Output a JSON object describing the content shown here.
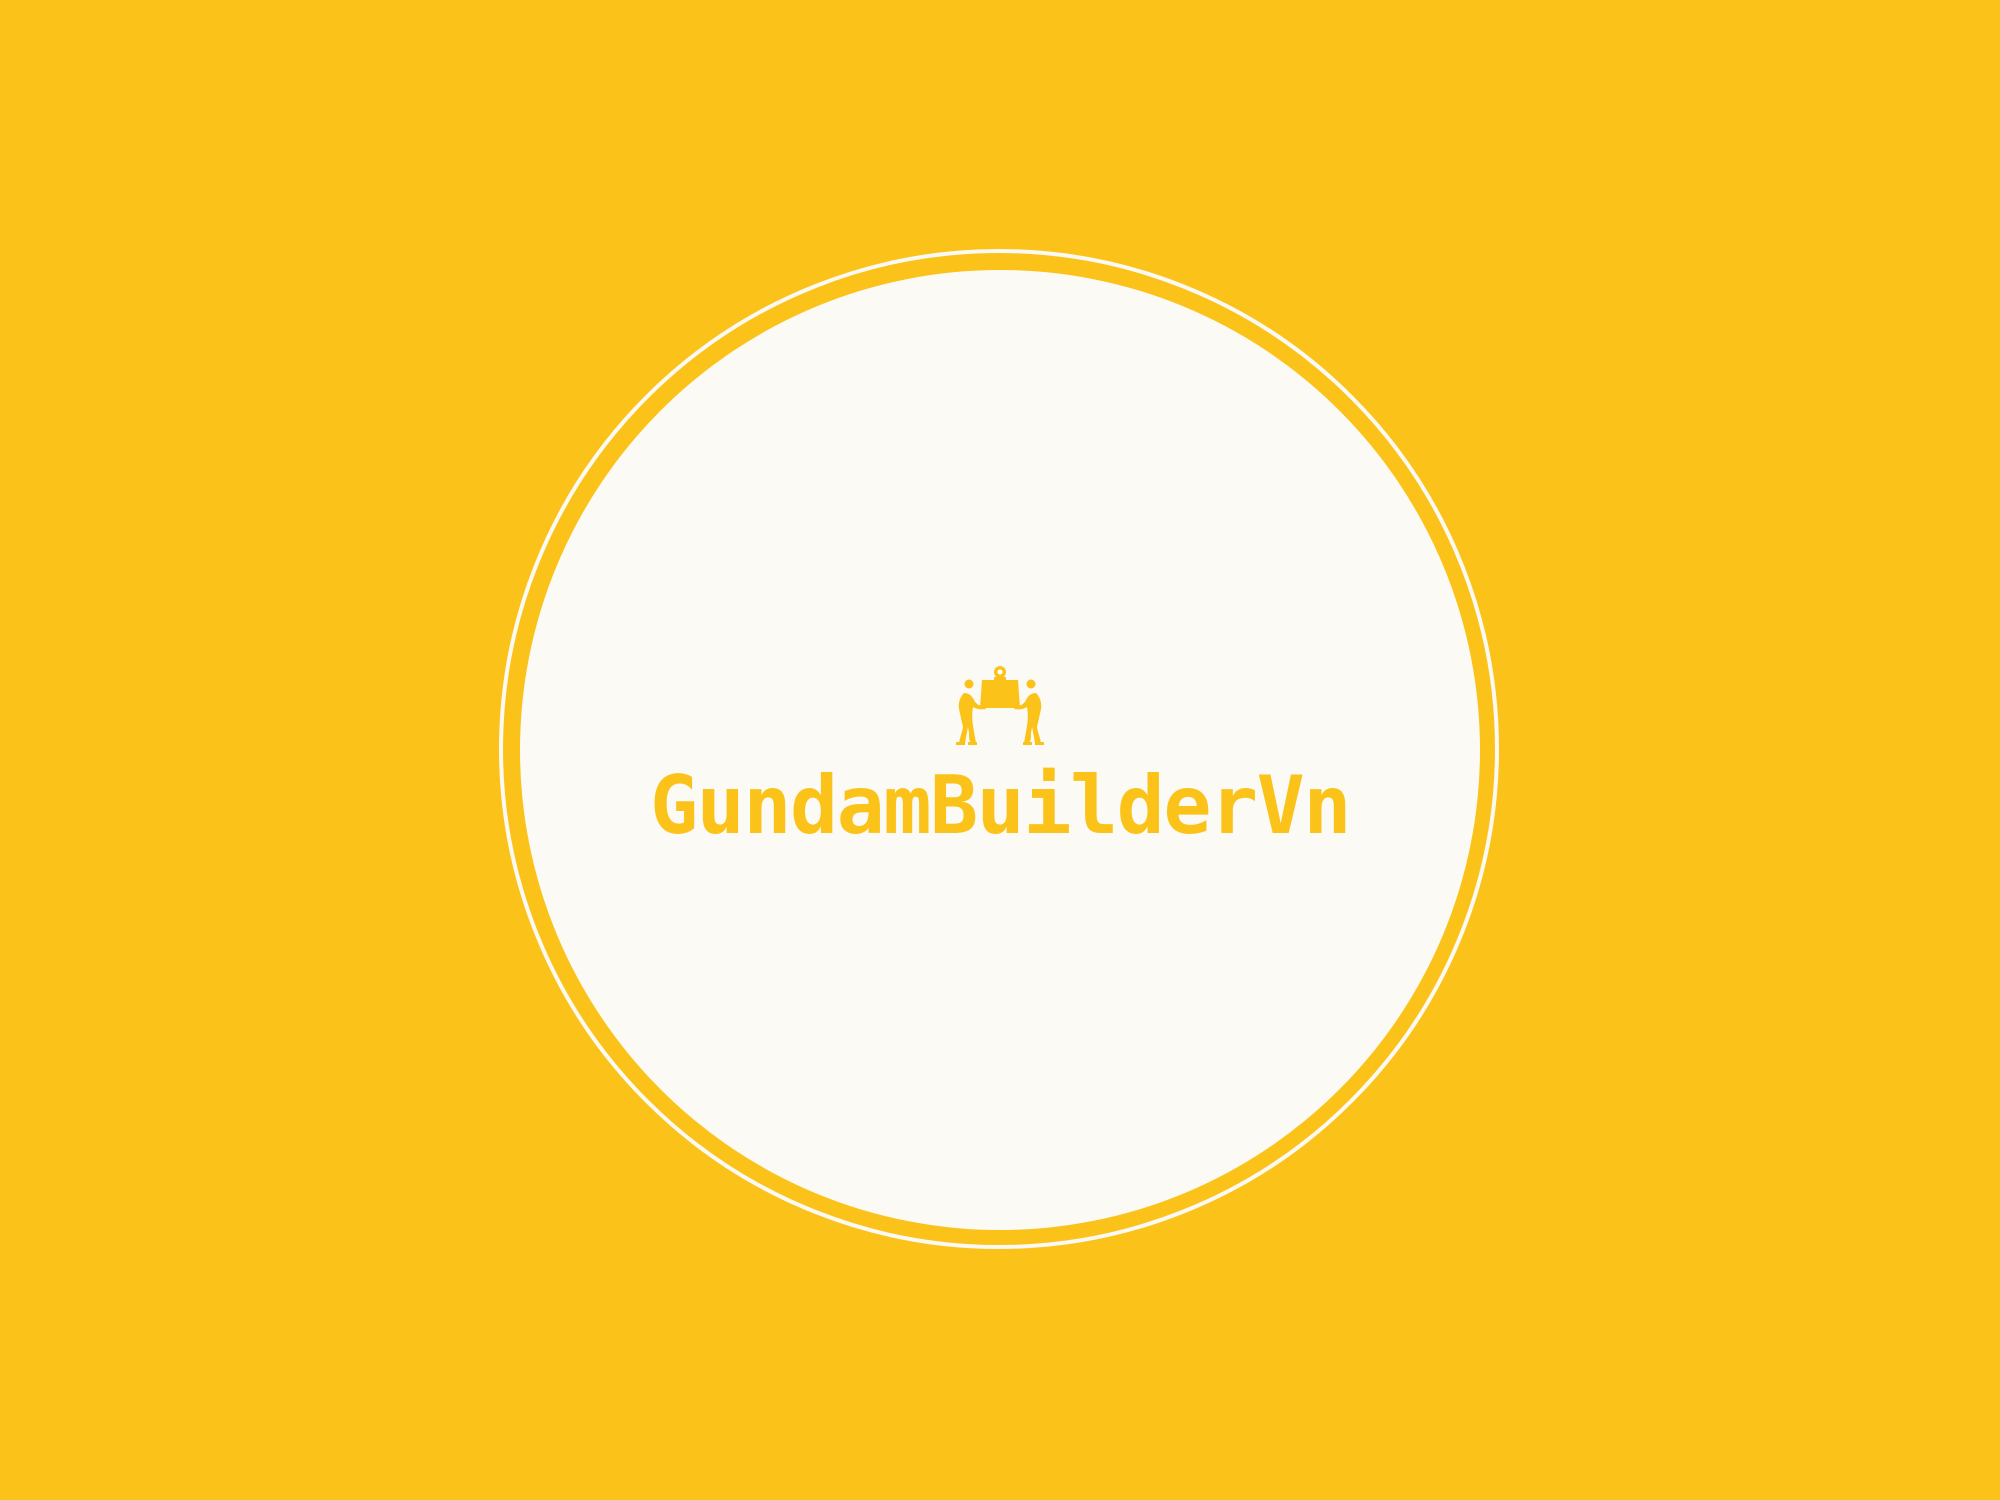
{
  "brand": {
    "name": "GundamBuilderVn",
    "logo_icon": "two-people-carrying-box-icon"
  },
  "colors": {
    "background": "#FBC31A",
    "disc": "#FBFAF4",
    "accent": "#FBC31A"
  }
}
